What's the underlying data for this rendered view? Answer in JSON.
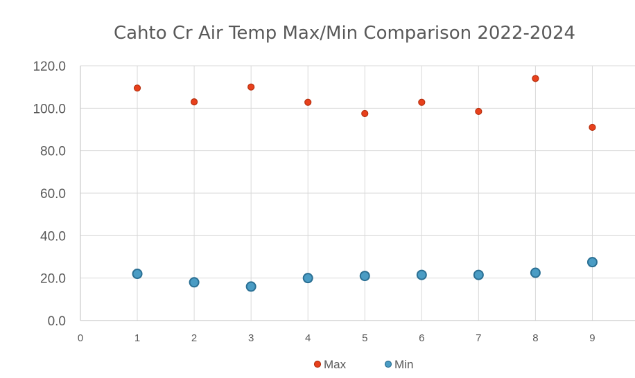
{
  "chart_data": {
    "type": "scatter",
    "title": "Cahto Cr Air Temp Max/Min Comparison 2022-2024",
    "xlabel": "",
    "ylabel": "",
    "xlim": [
      0,
      9.75
    ],
    "ylim": [
      0,
      120
    ],
    "x_ticks": [
      "0",
      "1",
      "2",
      "3",
      "4",
      "5",
      "6",
      "7",
      "8",
      "9"
    ],
    "y_ticks": [
      "0.0",
      "20.0",
      "40.0",
      "60.0",
      "80.0",
      "100.0",
      "120.0"
    ],
    "grid": true,
    "legend": "bottom",
    "series": [
      {
        "name": "Max",
        "color": "#e8401c",
        "edge_color": "#b5300f",
        "x": [
          1,
          2,
          3,
          4,
          5,
          6,
          7,
          8,
          9
        ],
        "y": [
          109.5,
          103.0,
          110.0,
          102.8,
          97.5,
          102.8,
          98.5,
          114.0,
          91.0
        ]
      },
      {
        "name": "Min",
        "color": "#4a9cc4",
        "edge_color": "#2a6f93",
        "x": [
          1,
          2,
          3,
          4,
          5,
          6,
          7,
          8,
          9
        ],
        "y": [
          22.0,
          18.0,
          16.0,
          20.0,
          21.0,
          21.5,
          21.5,
          22.5,
          27.5
        ]
      }
    ]
  }
}
